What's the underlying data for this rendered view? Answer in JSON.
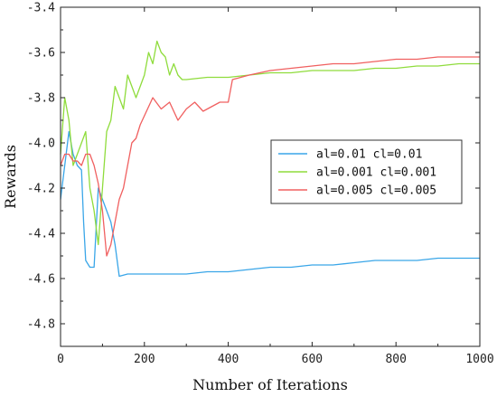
{
  "chart_data": {
    "type": "line",
    "title": "",
    "xlabel": "Number of Iterations",
    "ylabel": "Rewards",
    "xlim": [
      0,
      1000
    ],
    "ylim": [
      -4.9,
      -3.4
    ],
    "x_ticks": [
      0,
      200,
      400,
      600,
      800,
      1000
    ],
    "x_tick_labels": [
      "0",
      "200",
      "400",
      "600",
      "800",
      "1000"
    ],
    "y_ticks": [
      -4.8,
      -4.6,
      -4.4,
      -4.2,
      -4.0,
      -3.8,
      -3.6,
      -3.4
    ],
    "y_tick_labels": [
      "-4.8",
      "-4.6",
      "-4.4",
      "-4.2",
      "-4.0",
      "-3.8",
      "-3.6",
      "-3.4"
    ],
    "grid": false,
    "legend_position": "center-right",
    "series": [
      {
        "name": "al=0.01 cl=0.01",
        "color": "#3aa6e8",
        "x": [
          0,
          10,
          20,
          30,
          40,
          50,
          55,
          60,
          70,
          80,
          90,
          100,
          110,
          120,
          130,
          140,
          160,
          200,
          250,
          300,
          350,
          400,
          450,
          500,
          550,
          600,
          650,
          700,
          750,
          800,
          850,
          900,
          950,
          1000
        ],
        "values": [
          -4.25,
          -4.1,
          -3.95,
          -4.05,
          -4.1,
          -4.12,
          -4.35,
          -4.52,
          -4.55,
          -4.55,
          -4.2,
          -4.25,
          -4.3,
          -4.35,
          -4.45,
          -4.59,
          -4.58,
          -4.58,
          -4.58,
          -4.58,
          -4.57,
          -4.57,
          -4.56,
          -4.55,
          -4.55,
          -4.54,
          -4.54,
          -4.53,
          -4.52,
          -4.52,
          -4.52,
          -4.51,
          -4.51,
          -4.51
        ]
      },
      {
        "name": "al=0.001 cl=0.001",
        "color": "#8fdc3c",
        "x": [
          0,
          10,
          20,
          30,
          40,
          50,
          60,
          70,
          80,
          90,
          100,
          110,
          120,
          130,
          140,
          150,
          160,
          170,
          180,
          190,
          200,
          210,
          220,
          230,
          240,
          250,
          260,
          270,
          280,
          290,
          300,
          350,
          400,
          450,
          500,
          550,
          600,
          650,
          700,
          750,
          800,
          850,
          900,
          950,
          1000
        ],
        "values": [
          -4.05,
          -3.8,
          -3.9,
          -4.1,
          -4.05,
          -4.0,
          -3.95,
          -4.2,
          -4.3,
          -4.45,
          -4.2,
          -3.95,
          -3.9,
          -3.75,
          -3.8,
          -3.85,
          -3.7,
          -3.75,
          -3.8,
          -3.75,
          -3.7,
          -3.6,
          -3.65,
          -3.55,
          -3.6,
          -3.62,
          -3.7,
          -3.65,
          -3.7,
          -3.72,
          -3.72,
          -3.71,
          -3.71,
          -3.7,
          -3.69,
          -3.69,
          -3.68,
          -3.68,
          -3.68,
          -3.67,
          -3.67,
          -3.66,
          -3.66,
          -3.65,
          -3.65
        ]
      },
      {
        "name": "al=0.005 cl=0.005",
        "color": "#f06060",
        "x": [
          0,
          10,
          20,
          30,
          40,
          50,
          60,
          70,
          80,
          90,
          100,
          110,
          120,
          130,
          140,
          150,
          160,
          170,
          180,
          190,
          200,
          220,
          240,
          260,
          280,
          300,
          320,
          340,
          360,
          380,
          400,
          410,
          450,
          500,
          550,
          600,
          650,
          700,
          750,
          800,
          850,
          900,
          950,
          1000
        ],
        "values": [
          -4.1,
          -4.05,
          -4.05,
          -4.08,
          -4.08,
          -4.1,
          -4.05,
          -4.05,
          -4.1,
          -4.18,
          -4.3,
          -4.5,
          -4.45,
          -4.35,
          -4.25,
          -4.2,
          -4.1,
          -4.0,
          -3.98,
          -3.92,
          -3.88,
          -3.8,
          -3.85,
          -3.82,
          -3.9,
          -3.85,
          -3.82,
          -3.86,
          -3.84,
          -3.82,
          -3.82,
          -3.72,
          -3.7,
          -3.68,
          -3.67,
          -3.66,
          -3.65,
          -3.65,
          -3.64,
          -3.63,
          -3.63,
          -3.62,
          -3.62,
          -3.62
        ]
      }
    ]
  }
}
